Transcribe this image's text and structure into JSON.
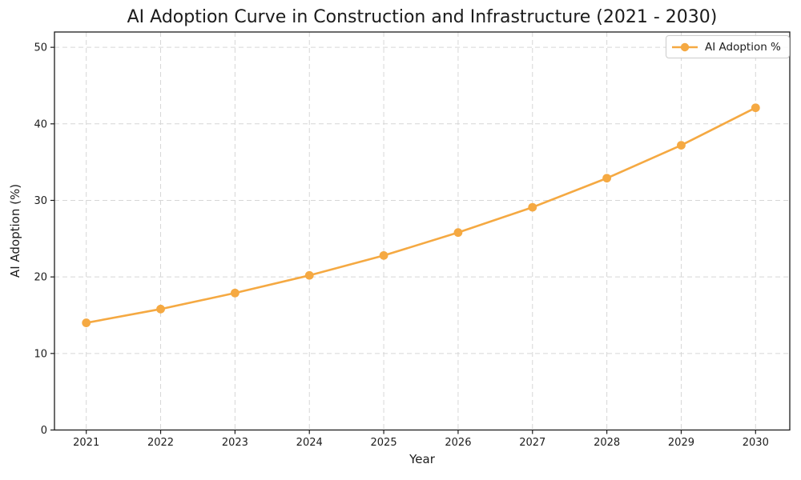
{
  "chart_data": {
    "type": "line",
    "title": "AI Adoption Curve in Construction and Infrastructure (2021 - 2030)",
    "xlabel": "Year",
    "ylabel": "AI Adoption (%)",
    "categories": [
      "2021",
      "2022",
      "2023",
      "2024",
      "2025",
      "2026",
      "2027",
      "2028",
      "2029",
      "2030"
    ],
    "series": [
      {
        "name": "AI Adoption %",
        "marker": "circle",
        "color": "#F5A942",
        "values": [
          14.0,
          15.8,
          17.9,
          20.2,
          22.8,
          25.8,
          29.1,
          32.9,
          37.2,
          42.1
        ]
      }
    ],
    "ylim": [
      0,
      52
    ],
    "yticks": [
      0,
      10,
      20,
      30,
      40,
      50
    ],
    "grid": true,
    "grid_style": "dashed",
    "legend": {
      "position": "upper right",
      "entries": [
        "AI Adoption %"
      ]
    },
    "colors": {
      "line": "#F5A942",
      "grid": "#D6D6D6",
      "axis": "#1C1C1C",
      "text": "#1C1C1C",
      "background": "#FFFFFF"
    }
  }
}
